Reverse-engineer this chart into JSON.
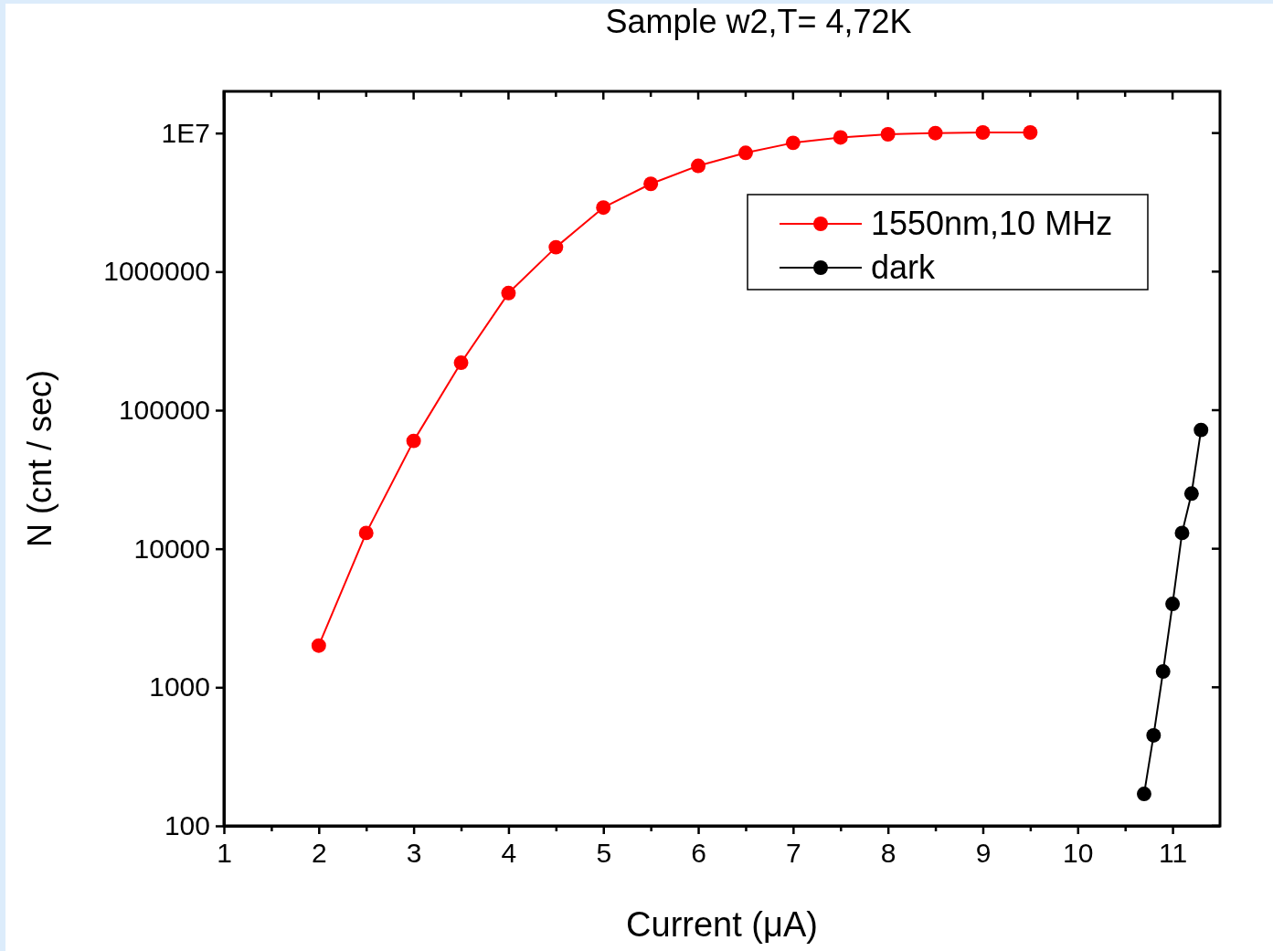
{
  "chart_data": {
    "type": "line",
    "title": "Sample w2,T= 4,72K",
    "xlabel": "Current (μA)",
    "ylabel": "N (cnt / sec)",
    "xlim": [
      1,
      11.5
    ],
    "xticks": [
      1,
      {
        "value": 1.5,
        "label": null
      },
      2,
      {
        "value": 2.5,
        "label": null
      },
      3,
      {
        "value": 3.5,
        "label": null
      },
      4,
      {
        "value": 4.5,
        "label": null
      },
      5,
      {
        "value": 5.5,
        "label": null
      },
      6,
      {
        "value": 6.5,
        "label": null
      },
      7,
      {
        "value": 7.5,
        "label": null
      },
      8,
      {
        "value": 8.5,
        "label": null
      },
      9,
      {
        "value": 9.5,
        "label": null
      },
      10,
      {
        "value": 10.5,
        "label": null
      },
      11
    ],
    "ylim": [
      100,
      20000000
    ],
    "yticks": [
      100,
      1000,
      10000,
      100000,
      1000000,
      {
        "value": 10000000,
        "label": "1E7"
      }
    ],
    "log": "y",
    "legend": "top right",
    "marker": "circle",
    "line_style": "solid",
    "grid": false,
    "series": [
      {
        "name": "1550nm,10 MHz",
        "color": "#ff0000",
        "x": [
          2,
          2.5,
          3,
          3.5,
          4,
          4.5,
          5,
          5.5,
          6,
          6.5,
          7,
          7.5,
          8,
          8.5,
          9,
          9.5
        ],
        "values": [
          2000,
          13000,
          60000,
          220000,
          700000,
          1500000,
          2900000,
          4300000,
          5800000,
          7200000,
          8500000,
          9300000,
          9800000,
          10000000,
          10100000,
          10100000
        ]
      },
      {
        "name": "dark",
        "color": "#000000",
        "x": [
          10.7,
          10.8,
          10.9,
          11,
          11.1,
          11.2,
          11.3
        ],
        "values": [
          170,
          450,
          1300,
          4000,
          13000,
          25000,
          72000
        ]
      }
    ]
  }
}
